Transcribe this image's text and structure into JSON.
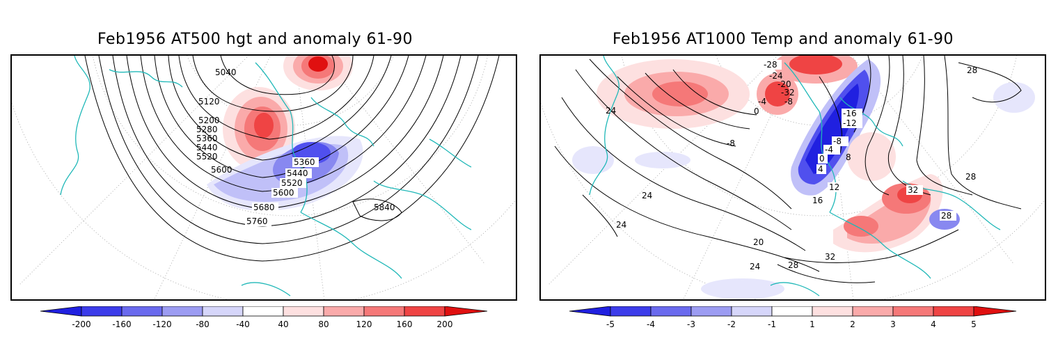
{
  "left_panel": {
    "title": "Feb1956 AT500 hgt and anomaly 61-90",
    "contour_labels": [
      "5040",
      "5120",
      "5200",
      "5280",
      "5360",
      "5440",
      "5520",
      "5600",
      "5360",
      "5440",
      "5520",
      "5600",
      "5680",
      "5760",
      "5840"
    ],
    "colorbar_ticks": [
      "-200",
      "-160",
      "-120",
      "-80",
      "-40",
      "40",
      "80",
      "120",
      "160",
      "200"
    ]
  },
  "right_panel": {
    "title": "Feb1956 AT1000 Temp and anomaly 61-90",
    "contour_labels": [
      "-28",
      "-24",
      "-20",
      "-32",
      "-4",
      "-8",
      "0",
      "-8",
      "-16",
      "-12",
      "-8",
      "-4",
      "0",
      "4",
      "8",
      "12",
      "16",
      "20",
      "24",
      "24",
      "24",
      "24",
      "28",
      "28",
      "28",
      "28",
      "32",
      "32",
      "28"
    ],
    "colorbar_ticks": [
      "-5",
      "-4",
      "-3",
      "-2",
      "-1",
      "1",
      "2",
      "3",
      "4",
      "5"
    ]
  },
  "colors": {
    "coastline": "#20b8b8",
    "anomaly_blue": [
      "#2020e0",
      "#5050ee",
      "#8888f0",
      "#c0c0f8",
      "#e6e6fc"
    ],
    "anomaly_red": [
      "#fde0e0",
      "#faaaaa",
      "#f57878",
      "#ef4444",
      "#e01010"
    ]
  }
}
